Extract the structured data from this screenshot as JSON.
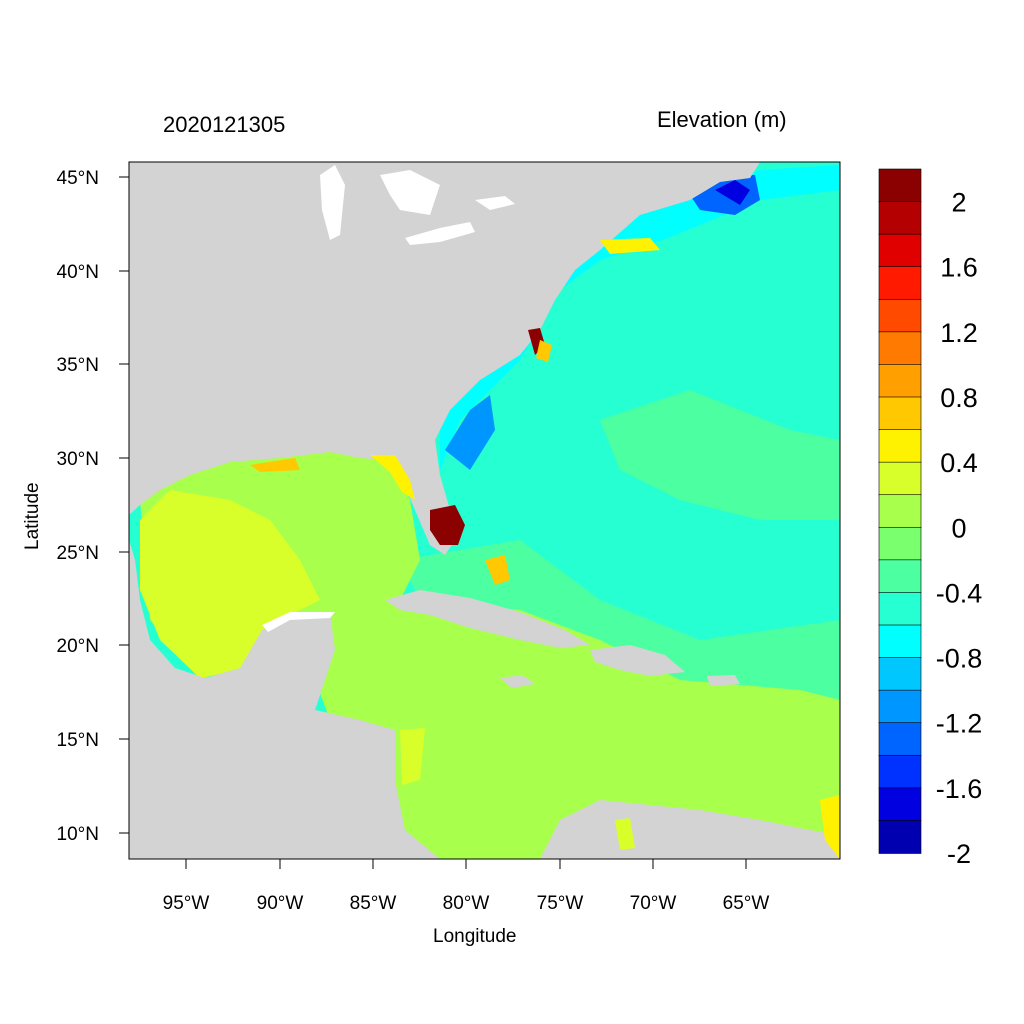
{
  "header": {
    "timestamp": "2020121305",
    "variable": "Elevation (m)"
  },
  "axes": {
    "xlabel": "Longitude",
    "ylabel": "Latitude",
    "lon_ticks": [
      "95°W",
      "90°W",
      "85°W",
      "80°W",
      "75°W",
      "70°W",
      "65°W"
    ],
    "lat_ticks": [
      "45°N",
      "40°N",
      "35°N",
      "30°N",
      "25°N",
      "20°N",
      "15°N",
      "10°N"
    ]
  },
  "colorbar": {
    "labels": [
      "2",
      "1.6",
      "1.2",
      "0.8",
      "0.4",
      "0",
      "-0.4",
      "-0.8",
      "-1.2",
      "-1.6",
      "-2"
    ],
    "colors": [
      "#8b0000",
      "#b40000",
      "#e00000",
      "#ff1a00",
      "#ff4a00",
      "#ff7a00",
      "#ff9f00",
      "#ffc800",
      "#fff200",
      "#d8ff2a",
      "#a8ff4c",
      "#7aff6e",
      "#4cffa0",
      "#26ffd2",
      "#00ffff",
      "#00c8ff",
      "#0096ff",
      "#0064ff",
      "#0032ff",
      "#0000e0",
      "#0000b0"
    ]
  },
  "map_colors": {
    "land": "#d3d3d3",
    "water_inland": "#ffffff",
    "gulf_high": "#d8ff2a",
    "gulf": "#a8ff4c",
    "caribbean": "#4cffa0",
    "atlantic": "#26ffd2",
    "shelf_low": "#00ffff",
    "deep_low": "#0064ff",
    "very_high": "#8b0000"
  }
}
